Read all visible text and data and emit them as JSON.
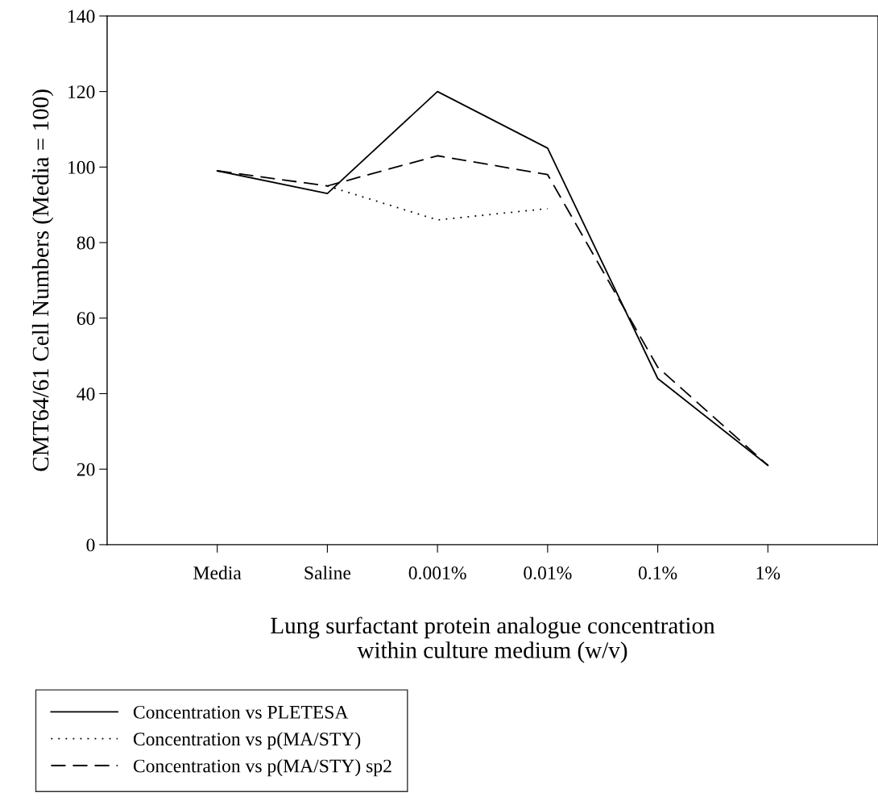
{
  "chart_data": {
    "type": "line",
    "ylabel": "CMT64/61 Cell Numbers (Media = 100)",
    "xlabel": "Lung surfactant protein analogue concentration\nwithin culture medium (w/v)",
    "categories": [
      "Media",
      "Saline",
      "0.001%",
      "0.01%",
      "0.1%",
      "1%"
    ],
    "series": [
      {
        "name": "Concentration vs PLETESA",
        "color": "#000000",
        "line_style": "solid",
        "values": [
          99,
          93,
          120,
          105,
          44,
          21
        ]
      },
      {
        "name": "Concentration vs p(MA/STY)",
        "color": "#000000",
        "line_style": "dotted",
        "values": [
          null,
          95,
          86,
          89,
          null,
          null
        ]
      },
      {
        "name": "Concentration vs p(MA/STY) sp2",
        "color": "#000000",
        "line_style": "dashed",
        "values": [
          99,
          95,
          103,
          98,
          47,
          21
        ]
      }
    ],
    "ylim": [
      0,
      140
    ],
    "yticks": [
      0,
      20,
      40,
      60,
      80,
      100,
      120,
      140
    ],
    "grid": false,
    "legend": "bottom left",
    "marker": "none"
  }
}
